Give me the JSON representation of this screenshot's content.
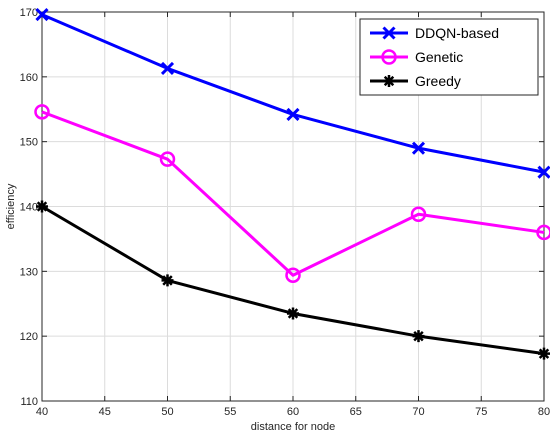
{
  "chart_data": {
    "type": "line",
    "xlabel": "distance for node",
    "ylabel": "efficiency",
    "xlim": [
      40,
      80
    ],
    "ylim": [
      110,
      170
    ],
    "xticks": [
      40,
      45,
      50,
      55,
      60,
      65,
      70,
      75,
      80
    ],
    "yticks": [
      110,
      120,
      130,
      140,
      150,
      160,
      170
    ],
    "grid": true,
    "legend_position": "top-right",
    "x": [
      40,
      50,
      60,
      70,
      80
    ],
    "series": [
      {
        "name": "DDQN-based",
        "values": [
          169.6,
          161.3,
          154.2,
          149.0,
          145.3
        ],
        "color": "#0000ff",
        "marker": "x"
      },
      {
        "name": "Genetic",
        "values": [
          154.6,
          147.3,
          129.4,
          138.8,
          136.0
        ],
        "color": "#ff00ff",
        "marker": "o"
      },
      {
        "name": "Greedy",
        "values": [
          140.0,
          128.6,
          123.5,
          120.0,
          117.3
        ],
        "color": "#000000",
        "marker": "*"
      }
    ]
  }
}
